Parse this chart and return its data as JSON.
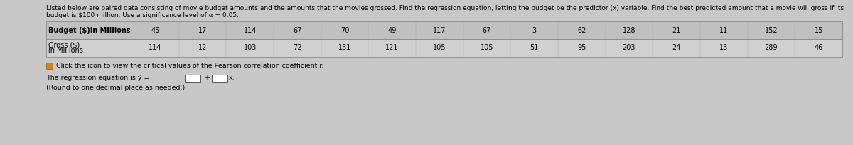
{
  "title_line1": "Listed below are paired data consisting of movie budget amounts and the amounts that the movies grossed. Find the regression equation, letting the budget be the predictor (x) variable. Find the best predicted amount that a movie will gross if its",
  "title_line2": "budget is $100 million. Use a significance level of α = 0.05.",
  "row1_label": "Budget ($)in Millions",
  "row2_label_line1": "Gross ($)",
  "row2_label_line2": "in Millions",
  "budget": [
    45,
    17,
    114,
    67,
    70,
    49,
    117,
    67,
    3,
    62,
    128,
    21,
    11,
    152,
    15
  ],
  "gross": [
    114,
    12,
    103,
    72,
    131,
    121,
    105,
    105,
    51,
    95,
    203,
    24,
    13,
    289,
    46
  ],
  "icon_text": "Click the icon to view the critical values of the Pearson correlation coefficient r.",
  "eq_line": "The regression equation is ŷ = ",
  "eq_plus": " + ",
  "eq_x": "x.",
  "eq_note": "(Round to one decimal place as needed.)",
  "bg_color": "#c8c8c8",
  "row1_bg": "#c0c0c0",
  "row2_bg": "#d0d0d0",
  "white": "#ffffff",
  "text_color": "#000000",
  "border_color": "#888888",
  "icon_color": "#d4821a",
  "title_fontsize": 6.5,
  "table_fontsize": 7.0,
  "body_fontsize": 6.8
}
